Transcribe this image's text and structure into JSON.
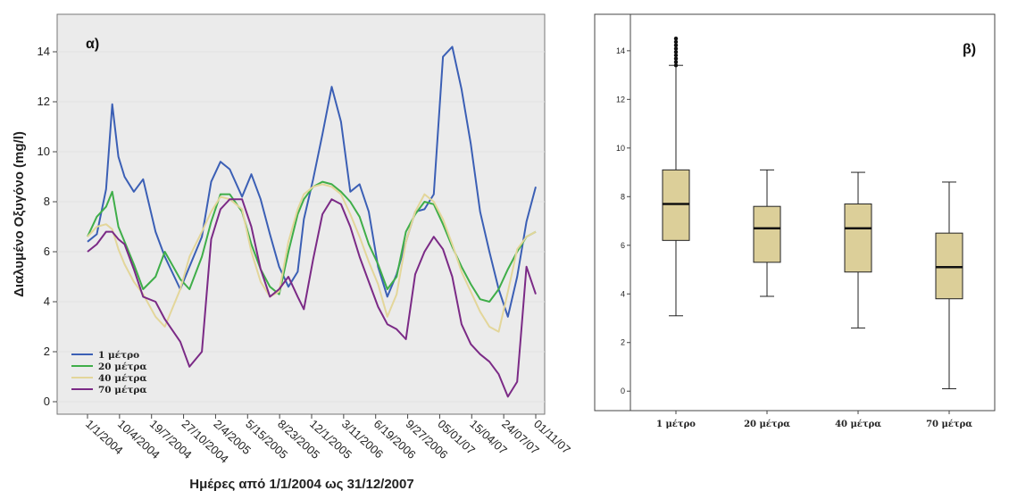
{
  "chart_data": [
    {
      "type": "line",
      "panel_label": "α)",
      "ylabel": "Διαλυμένο Οξυγόνο (mg/l)",
      "xlabel": "Ημέρες από 1/1/2004 ως 31/12/2007",
      "ylim": [
        -0.5,
        15.5
      ],
      "yticks": [
        0,
        2,
        4,
        6,
        8,
        10,
        12,
        14
      ],
      "xticks": [
        "1/1/2004",
        "10/4/2004",
        "19/7/2004",
        "27/10/2004",
        "2/4/2005",
        "5/15/2005",
        "8/23/2005",
        "12/1/2005",
        "3/11/2006",
        "6/19/2006",
        "9/27/2006",
        "05/01/07",
        "15/04/07",
        "24/07/07",
        "01/11/07"
      ],
      "legend_position": "bottom-left",
      "x": [
        0,
        0.3,
        0.6,
        0.8,
        1.0,
        1.2,
        1.5,
        1.8,
        2.2,
        2.5,
        3.0,
        3.3,
        3.7,
        4.0,
        4.3,
        4.6,
        5.0,
        5.3,
        5.6,
        5.9,
        6.2,
        6.5,
        6.8,
        7.0,
        7.3,
        7.6,
        7.9,
        8.2,
        8.5,
        8.8,
        9.1,
        9.4,
        9.7,
        10.0,
        10.3,
        10.6,
        10.9,
        11.2,
        11.5,
        11.8,
        12.1,
        12.4,
        12.7,
        13.0,
        13.3,
        13.6,
        13.9,
        14.2,
        14.5
      ],
      "series": [
        {
          "name": "1 μέτρο",
          "color": "#3b5fb5",
          "values": [
            6.4,
            6.7,
            8.5,
            11.9,
            9.8,
            9.0,
            8.4,
            8.9,
            6.8,
            5.8,
            4.5,
            5.4,
            6.6,
            8.8,
            9.6,
            9.3,
            8.2,
            9.1,
            8.1,
            6.7,
            5.4,
            4.6,
            5.2,
            7.3,
            8.9,
            10.7,
            12.6,
            11.2,
            8.4,
            8.7,
            7.6,
            5.4,
            4.2,
            5.1,
            6.4,
            7.6,
            7.7,
            8.3,
            13.8,
            14.2,
            12.5,
            10.3,
            7.6,
            6.0,
            4.5,
            3.4,
            5.0,
            7.2,
            8.6
          ]
        },
        {
          "name": "20 μέτρα",
          "color": "#3fae49",
          "values": [
            6.6,
            7.4,
            7.8,
            8.4,
            7.0,
            6.4,
            5.5,
            4.5,
            5.0,
            6.0,
            4.9,
            4.5,
            5.8,
            7.2,
            8.3,
            8.3,
            7.6,
            6.3,
            5.3,
            4.6,
            4.3,
            6.0,
            7.5,
            8.1,
            8.6,
            8.8,
            8.7,
            8.4,
            8.0,
            7.4,
            6.3,
            5.5,
            4.5,
            5.0,
            6.8,
            7.5,
            8.0,
            7.9,
            7.1,
            6.2,
            5.4,
            4.7,
            4.1,
            4.0,
            4.5,
            5.3,
            6.0,
            6.6,
            6.8
          ]
        },
        {
          "name": "40 μέτρα",
          "color": "#e3d69a",
          "values": [
            6.6,
            7.0,
            7.1,
            6.9,
            6.1,
            5.5,
            4.8,
            4.3,
            3.4,
            3.0,
            4.5,
            5.8,
            6.8,
            7.6,
            8.2,
            8.1,
            7.7,
            6.0,
            4.8,
            4.2,
            4.4,
            6.4,
            7.7,
            8.3,
            8.6,
            8.7,
            8.6,
            8.3,
            7.5,
            6.6,
            5.6,
            4.7,
            3.4,
            4.3,
            6.4,
            7.6,
            8.3,
            8.0,
            7.3,
            6.3,
            5.2,
            4.4,
            3.6,
            3.0,
            2.8,
            4.4,
            6.1,
            6.6,
            6.8
          ]
        },
        {
          "name": "70 μέτρα",
          "color": "#7b2a86",
          "values": [
            6.0,
            6.3,
            6.8,
            6.8,
            6.5,
            6.3,
            5.3,
            4.2,
            4.0,
            3.3,
            2.4,
            1.4,
            2.0,
            6.5,
            7.7,
            8.1,
            8.1,
            7.0,
            5.3,
            4.2,
            4.5,
            5.0,
            4.2,
            3.7,
            5.7,
            7.5,
            8.1,
            7.9,
            7.0,
            5.8,
            4.8,
            3.8,
            3.1,
            2.9,
            2.5,
            5.1,
            6.0,
            6.6,
            6.1,
            5.0,
            3.1,
            2.3,
            1.9,
            1.6,
            1.1,
            0.2,
            0.8,
            5.4,
            4.3
          ]
        }
      ]
    },
    {
      "type": "box",
      "panel_label": "β)",
      "ylim": [
        -0.8,
        15.5
      ],
      "yticks": [
        0,
        2,
        4,
        6,
        8,
        10,
        12,
        14
      ],
      "categories": [
        "1 μέτρο",
        "20 μέτρα",
        "40 μέτρα",
        "70 μέτρα"
      ],
      "fill_color": "#dccf99",
      "boxes": [
        {
          "whisker_low": 3.1,
          "q1": 6.2,
          "median": 7.7,
          "q3": 9.1,
          "whisker_high": 13.4,
          "outliers_max": 14.5
        },
        {
          "whisker_low": 3.9,
          "q1": 5.3,
          "median": 6.7,
          "q3": 7.6,
          "whisker_high": 9.1
        },
        {
          "whisker_low": 2.6,
          "q1": 4.9,
          "median": 6.7,
          "q3": 7.7,
          "whisker_high": 9.0
        },
        {
          "whisker_low": 0.1,
          "q1": 3.8,
          "median": 5.1,
          "q3": 6.5,
          "whisker_high": 8.6
        }
      ]
    }
  ]
}
